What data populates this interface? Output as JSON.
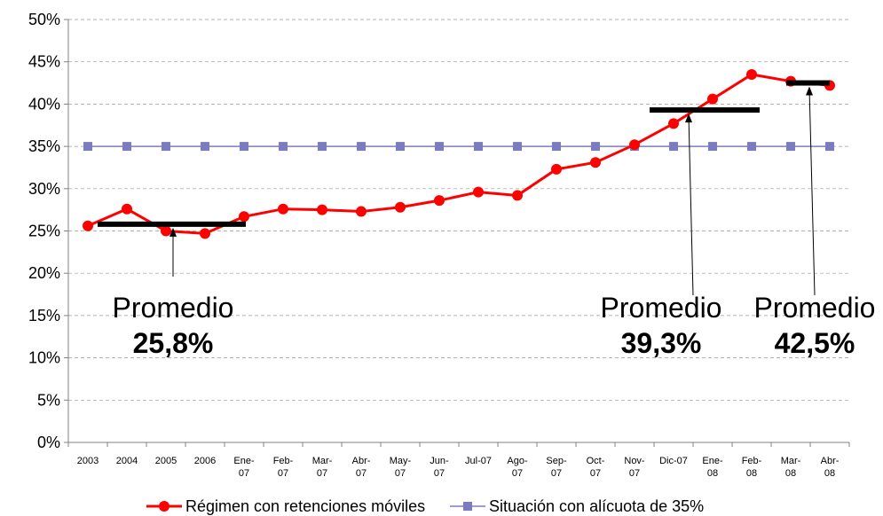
{
  "chart_data": {
    "type": "line",
    "categories": [
      "2003",
      "2004",
      "2005",
      "2006",
      "Ene-\n07",
      "Feb-\n07",
      "Mar-\n07",
      "Abr-\n07",
      "May-\n07",
      "Jun-\n07",
      "Jul-07",
      "Ago-\n07",
      "Sep-\n07",
      "Oct-\n07",
      "Nov-\n07",
      "Dic-07",
      "Ene-\n08",
      "Feb-\n08",
      "Mar-\n08",
      "Abr-\n08"
    ],
    "series": [
      {
        "name": "Régimen con retenciones móviles",
        "color": "#ff0000",
        "values": [
          25.6,
          27.6,
          25.0,
          24.7,
          26.7,
          27.6,
          27.5,
          27.3,
          27.8,
          28.6,
          29.6,
          29.2,
          32.3,
          33.1,
          35.2,
          37.7,
          40.6,
          43.5,
          42.7,
          42.2
        ]
      },
      {
        "name": "Situación con alícuota de 35%",
        "color": "#7b7bbf",
        "values": [
          35,
          35,
          35,
          35,
          35,
          35,
          35,
          35,
          35,
          35,
          35,
          35,
          35,
          35,
          35,
          35,
          35,
          35,
          35,
          35
        ]
      }
    ],
    "ylim": [
      0,
      50
    ],
    "yticks": [
      {
        "value": 0,
        "label": "0%"
      },
      {
        "value": 5,
        "label": "5%"
      },
      {
        "value": 10,
        "label": "10%"
      },
      {
        "value": 15,
        "label": "15%"
      },
      {
        "value": 20,
        "label": "20%"
      },
      {
        "value": 25,
        "label": "25%"
      },
      {
        "value": 30,
        "label": "30%"
      },
      {
        "value": 35,
        "label": "35%"
      },
      {
        "value": 40,
        "label": "40%"
      },
      {
        "value": 45,
        "label": "45%"
      },
      {
        "value": 50,
        "label": "50%"
      }
    ],
    "grid": true,
    "annotations": [
      {
        "text": "Promedio",
        "value": 25.8,
        "value_label": "25,8%"
      },
      {
        "text": "Promedio",
        "value": 39.3,
        "value_label": "39,3%"
      },
      {
        "text": "Promedio",
        "value": 42.5,
        "value_label": "42,5%"
      }
    ]
  }
}
